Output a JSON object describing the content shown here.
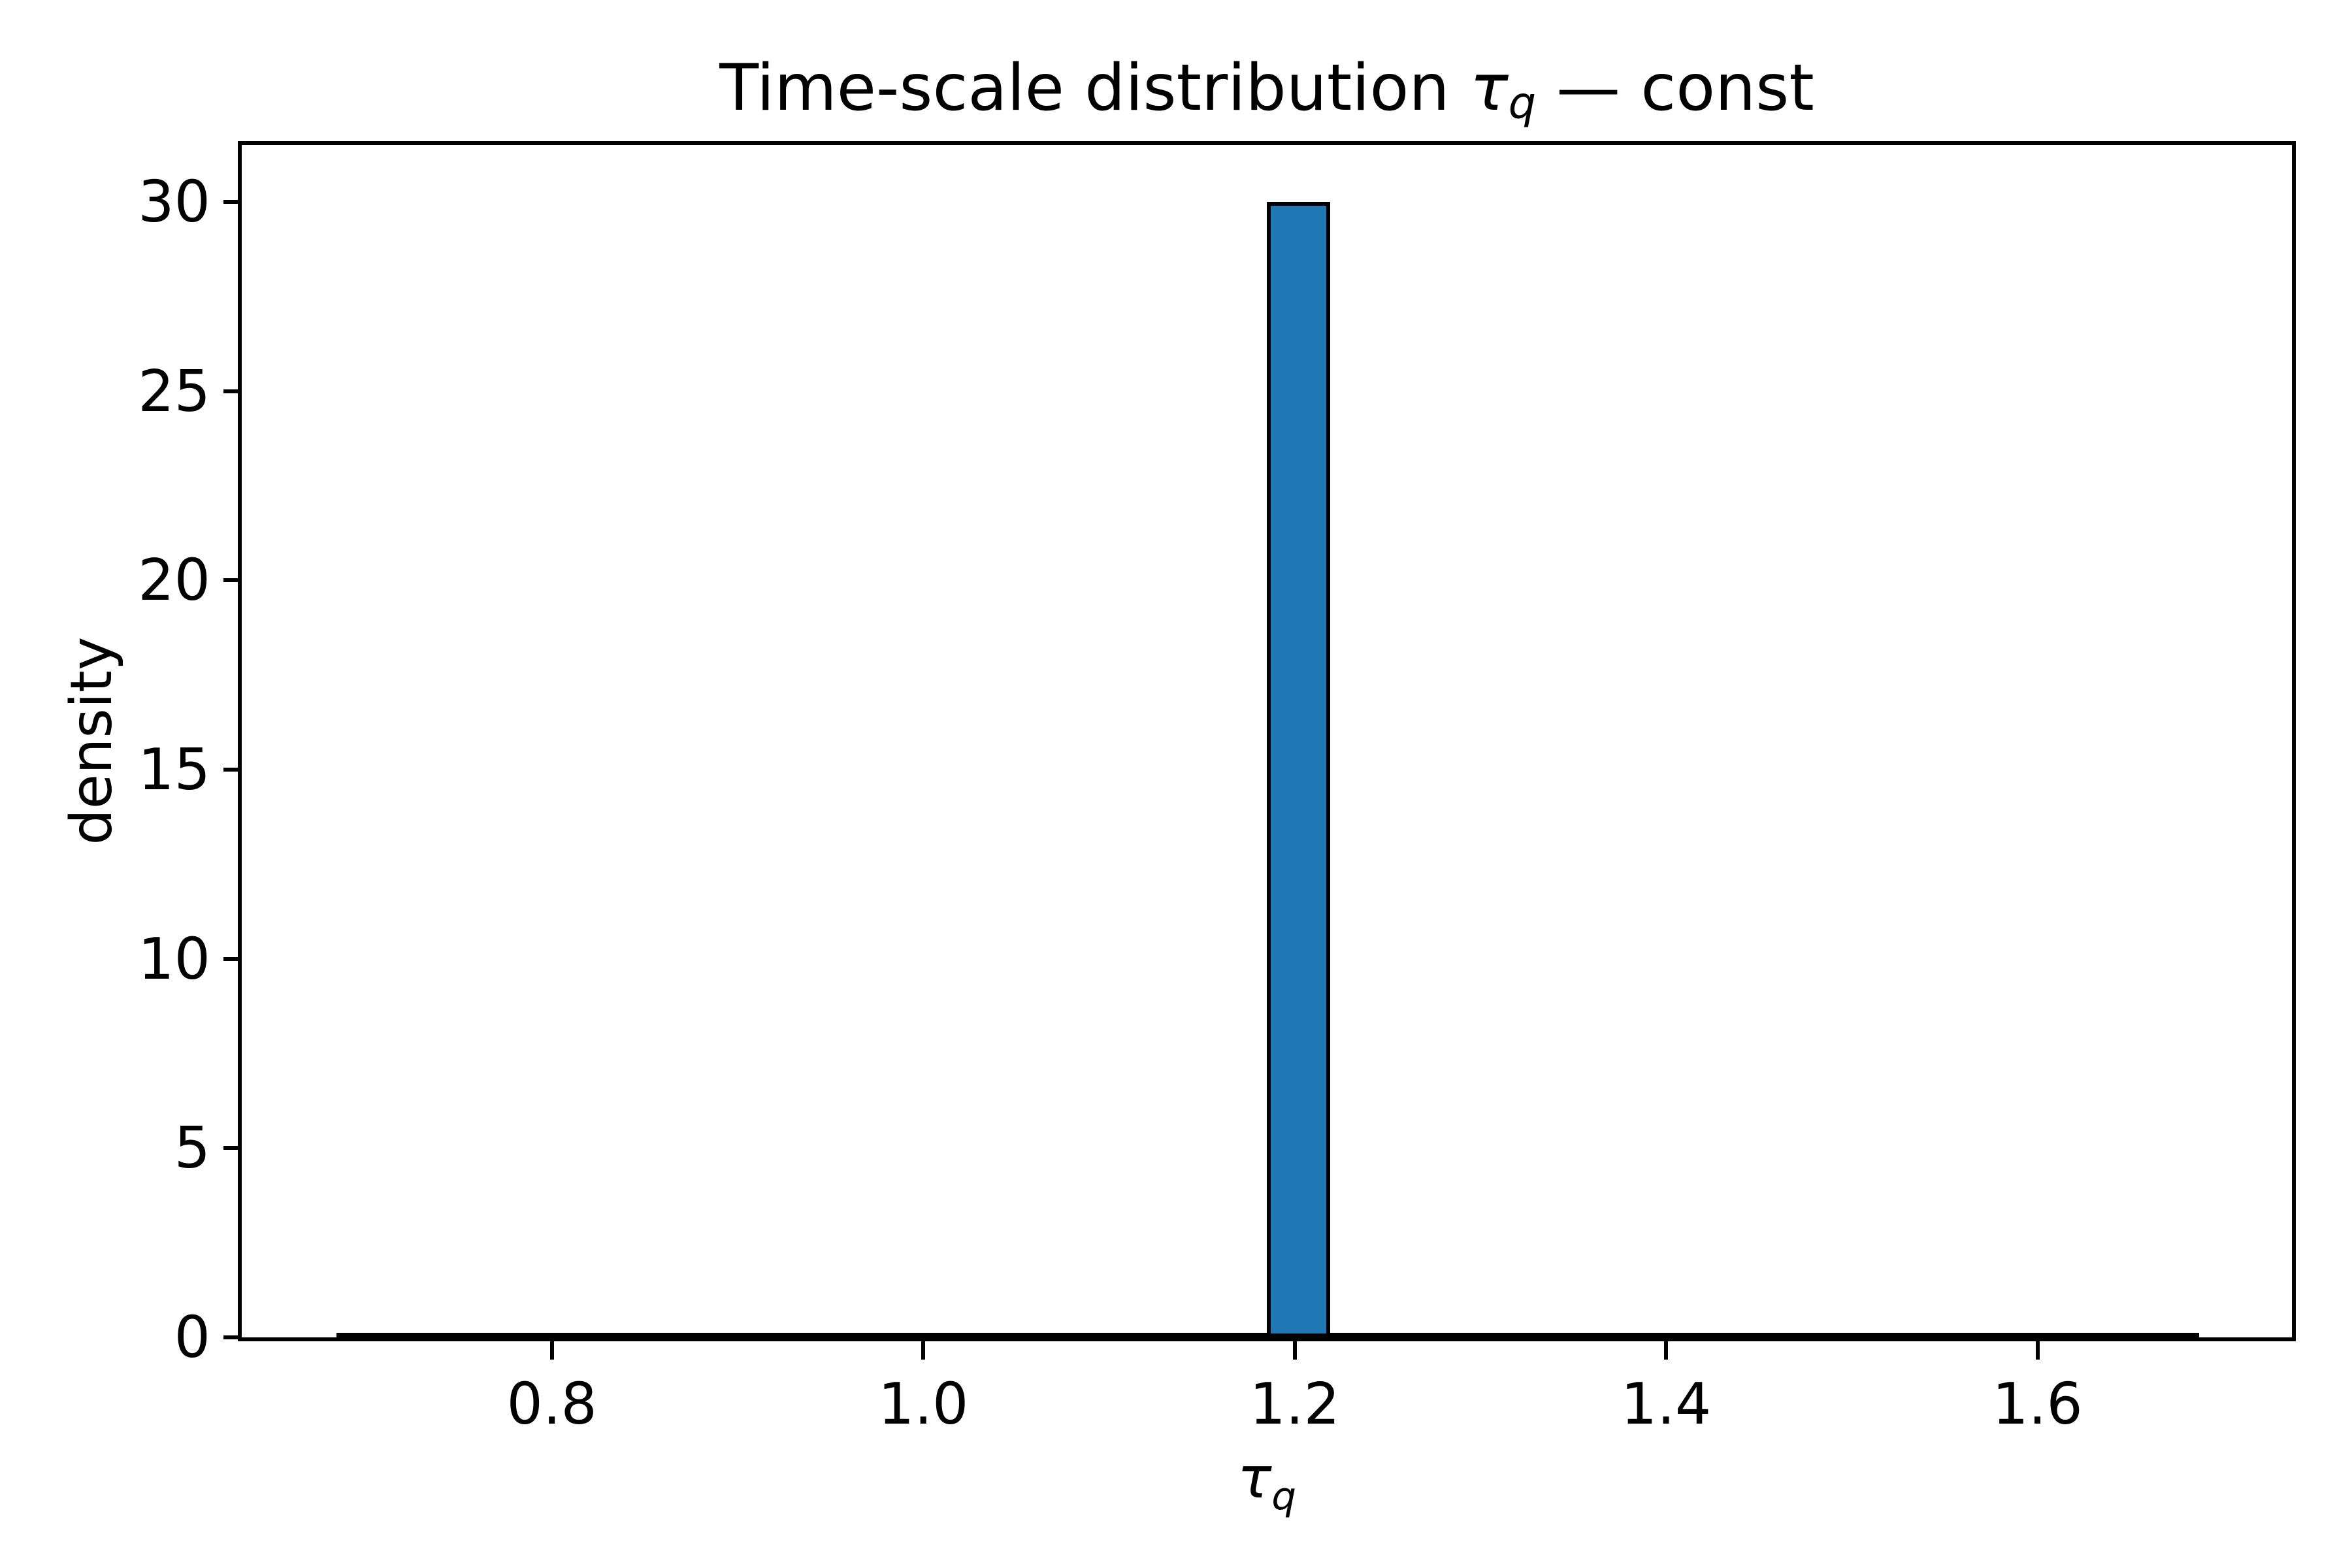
{
  "figure": {
    "title": {
      "full": "Time-scale distribution τq — const",
      "prefix": "Time-scale distribution ",
      "tau": "τ",
      "sub": "q",
      "suffix": " — const"
    },
    "xlabel": {
      "tau": "τ",
      "sub": "q"
    },
    "ylabel": "density"
  },
  "chart_data": {
    "type": "histogram",
    "title": "Time-scale distribution τ_q — const",
    "xlabel": "τ_q",
    "ylabel": "density",
    "xlim": [
      0.633,
      1.737
    ],
    "ylim": [
      0,
      31.5
    ],
    "x_tick_values": [
      0.8,
      1.0,
      1.2,
      1.4,
      1.6
    ],
    "x_tick_labels": [
      "0.8",
      "1.0",
      "1.2",
      "1.4",
      "1.6"
    ],
    "y_tick_values": [
      0,
      5,
      10,
      15,
      20,
      25,
      30
    ],
    "y_tick_labels": [
      "0",
      "5",
      "10",
      "15",
      "20",
      "25",
      "30"
    ],
    "bars": [
      {
        "x0": 1.185,
        "x1": 1.219,
        "density": 30
      }
    ],
    "baseline_ridge": {
      "x0": 0.684,
      "x1": 1.687,
      "density": 0
    },
    "bar_fill_color": "#1f77b4",
    "bar_edge_color": "#000000",
    "grid": false,
    "legend": false
  }
}
